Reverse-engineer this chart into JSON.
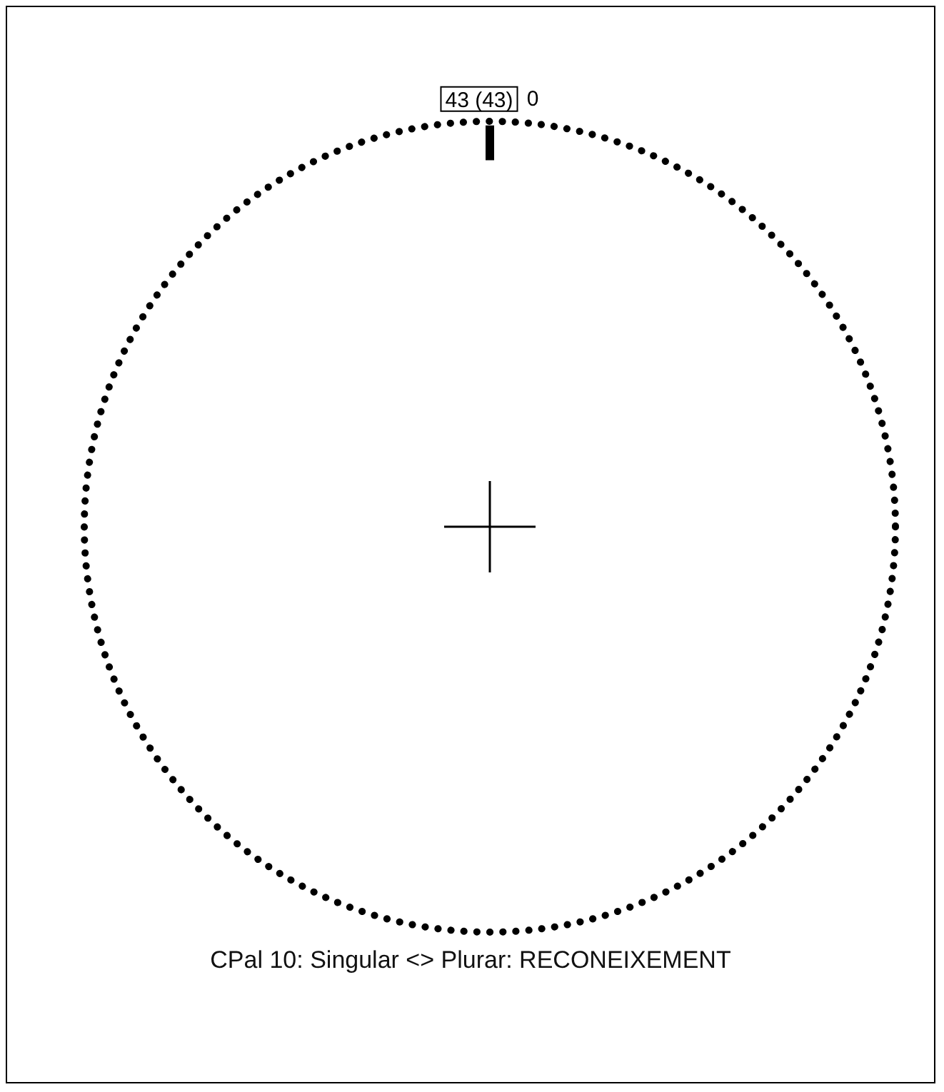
{
  "chart_data": {
    "type": "other",
    "title": "CPal 10: Singular <> Plurar: RECONEIXEMENT",
    "categories": [
      "0"
    ],
    "values": [
      43
    ],
    "value_labels": [
      "43 (43)"
    ],
    "color": "#000000"
  }
}
